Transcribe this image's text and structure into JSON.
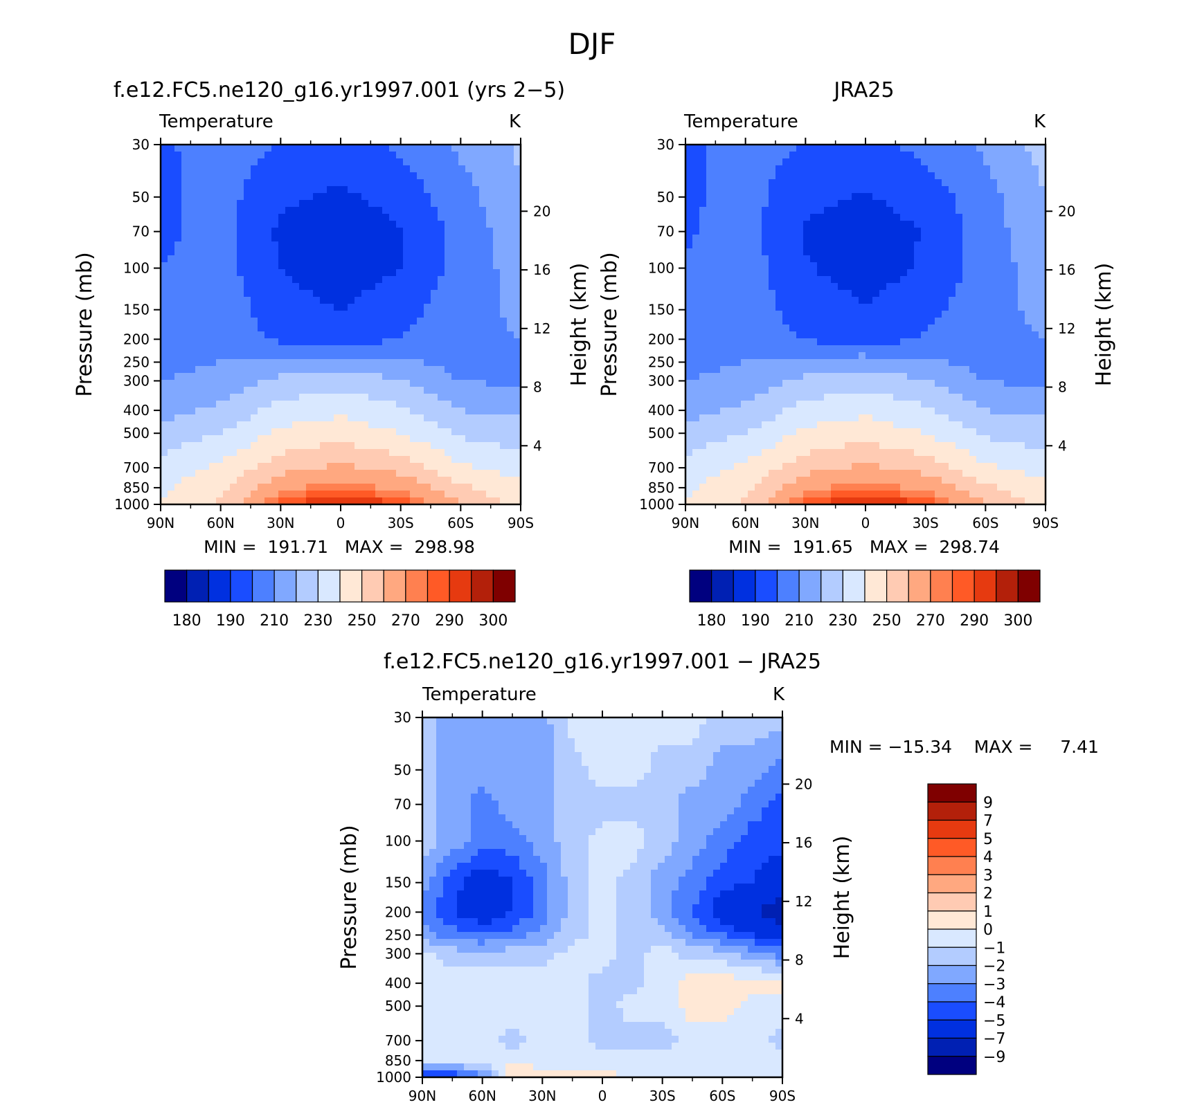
{
  "figure": {
    "title": "DJF"
  },
  "palettes": {
    "abs": [
      "#00007f",
      "#0020b3",
      "#0030e0",
      "#1a4dff",
      "#4d80ff",
      "#80a8ff",
      "#b3ccff",
      "#d9e8ff",
      "#ffe8d6",
      "#ffcbb3",
      "#ffa880",
      "#ff8050",
      "#ff5a26",
      "#e63a10",
      "#b3200a",
      "#7f0000"
    ],
    "diff": [
      "#00007f",
      "#0020b3",
      "#0030e0",
      "#1a4dff",
      "#4d80ff",
      "#80a8ff",
      "#b3ccff",
      "#d9e8ff",
      "#ffe8d6",
      "#ffcbb3",
      "#ffa880",
      "#ff8050",
      "#ff5a26",
      "#e63a10",
      "#b3200a",
      "#7f0000"
    ]
  },
  "chart_data": [
    {
      "type": "heatmap",
      "title": "f.e12.FC5.ne120_g16.yr1997.001 (yrs 2−5)",
      "subtitle": "Temperature",
      "units": "K",
      "xlabel": "",
      "ylabel": "Pressure (mb)",
      "y2label": "Height (km)",
      "x_ticks": [
        "90N",
        "60N",
        "30N",
        "0",
        "30S",
        "60S",
        "90S"
      ],
      "y_ticks": [
        "30",
        "50",
        "70",
        "100",
        "150",
        "200",
        "250",
        "300",
        "400",
        "500",
        "700",
        "850",
        "1000"
      ],
      "y2_ticks": [
        "20",
        "16",
        "12",
        "8",
        "4"
      ],
      "min_label": "MIN =  191.71   MAX =  298.98",
      "min": 191.71,
      "max": 298.98,
      "levels": [
        "180",
        "190",
        "210",
        "230",
        "250",
        "270",
        "290",
        "300"
      ],
      "field": {
        "kind": "abs",
        "x": [
          -90,
          -60,
          -30,
          0,
          30,
          60,
          90
        ],
        "p": [
          30,
          50,
          70,
          100,
          150,
          200,
          250,
          300,
          400,
          500,
          700,
          850,
          1000
        ],
        "values": [
          [
            208,
            215,
            210,
            206,
            212,
            222,
            232
          ],
          [
            208,
            214,
            202,
            198,
            204,
            216,
            228
          ],
          [
            208,
            214,
            198,
            192,
            200,
            214,
            226
          ],
          [
            210,
            214,
            200,
            194,
            200,
            214,
            224
          ],
          [
            212,
            216,
            204,
            200,
            206,
            216,
            222
          ],
          [
            214,
            217,
            208,
            204,
            210,
            217,
            220
          ],
          [
            217,
            220,
            224,
            226,
            222,
            216,
            216
          ],
          [
            220,
            224,
            232,
            236,
            230,
            220,
            218
          ],
          [
            226,
            232,
            244,
            248,
            242,
            230,
            228
          ],
          [
            234,
            240,
            252,
            256,
            250,
            238,
            234
          ],
          [
            244,
            252,
            266,
            272,
            266,
            252,
            246
          ],
          [
            248,
            258,
            278,
            284,
            278,
            262,
            252
          ],
          [
            250,
            262,
            288,
            298,
            290,
            270,
            256
          ]
        ]
      }
    },
    {
      "type": "heatmap",
      "title": "JRA25",
      "subtitle": "Temperature",
      "units": "K",
      "xlabel": "",
      "ylabel": "Pressure (mb)",
      "y2label": "Height (km)",
      "x_ticks": [
        "90N",
        "60N",
        "30N",
        "0",
        "30S",
        "60S",
        "90S"
      ],
      "y_ticks": [
        "30",
        "50",
        "70",
        "100",
        "150",
        "200",
        "250",
        "300",
        "400",
        "500",
        "700",
        "850",
        "1000"
      ],
      "y2_ticks": [
        "20",
        "16",
        "12",
        "8",
        "4"
      ],
      "min_label": "MIN =  191.65   MAX =  298.74",
      "min": 191.65,
      "max": 298.74,
      "levels": [
        "180",
        "190",
        "210",
        "230",
        "250",
        "270",
        "290",
        "300"
      ],
      "field": {
        "kind": "abs",
        "x": [
          -90,
          -60,
          -30,
          0,
          30,
          60,
          90
        ],
        "p": [
          30,
          50,
          70,
          100,
          150,
          200,
          250,
          300,
          400,
          500,
          700,
          850,
          1000
        ],
        "values": [
          [
            208,
            214,
            210,
            207,
            213,
            222,
            234
          ],
          [
            208,
            214,
            203,
            199,
            205,
            216,
            230
          ],
          [
            209,
            214,
            199,
            193,
            201,
            215,
            228
          ],
          [
            211,
            215,
            201,
            195,
            201,
            215,
            225
          ],
          [
            213,
            216,
            205,
            201,
            207,
            217,
            222
          ],
          [
            215,
            217,
            209,
            205,
            211,
            217,
            220
          ],
          [
            217,
            220,
            224,
            226,
            222,
            216,
            214
          ],
          [
            220,
            224,
            232,
            236,
            230,
            220,
            217
          ],
          [
            226,
            232,
            244,
            248,
            242,
            230,
            228
          ],
          [
            234,
            240,
            252,
            256,
            250,
            238,
            234
          ],
          [
            244,
            252,
            266,
            272,
            266,
            252,
            246
          ],
          [
            248,
            258,
            278,
            284,
            278,
            262,
            252
          ],
          [
            250,
            262,
            288,
            298,
            290,
            270,
            256
          ]
        ]
      }
    },
    {
      "type": "heatmap",
      "title": "f.e12.FC5.ne120_g16.yr1997.001 − JRA25",
      "subtitle": "Temperature",
      "units": "K",
      "xlabel": "",
      "ylabel": "Pressure (mb)",
      "y2label": "Height (km)",
      "x_ticks": [
        "90N",
        "60N",
        "30N",
        "0",
        "30S",
        "60S",
        "90S"
      ],
      "y_ticks": [
        "30",
        "50",
        "70",
        "100",
        "150",
        "200",
        "250",
        "300",
        "400",
        "500",
        "700",
        "850",
        "1000"
      ],
      "y2_ticks": [
        "20",
        "16",
        "12",
        "8",
        "4"
      ],
      "min_label": "MIN = −15.34    MAX =     7.41",
      "min": -15.34,
      "max": 7.41,
      "levels": [
        "9",
        "7",
        "5",
        "4",
        "3",
        "2",
        "1",
        "0",
        "−1",
        "−2",
        "−3",
        "−4",
        "−5",
        "−7",
        "−9"
      ],
      "field": {
        "kind": "diff",
        "x": [
          -90,
          -75,
          -60,
          -45,
          -30,
          -15,
          0,
          15,
          30,
          45,
          60,
          75,
          90
        ],
        "p": [
          30,
          50,
          70,
          100,
          150,
          200,
          250,
          300,
          400,
          500,
          700,
          850,
          1000
        ],
        "values": [
          [
            -1.5,
            -2.5,
            -2.5,
            -2.5,
            -2.5,
            -0.5,
            -0.5,
            -0.5,
            -0.5,
            -0.5,
            -1.5,
            -1.5,
            -1.5
          ],
          [
            -1.5,
            -2.5,
            -2.5,
            -2.5,
            -2.5,
            -1.5,
            -0.5,
            -0.5,
            -1.5,
            -1.5,
            -2.5,
            -2.5,
            -3.5
          ],
          [
            -1.5,
            -2.5,
            -3.5,
            -2.5,
            -2.5,
            -1.5,
            -1.5,
            -1.5,
            -1.5,
            -2.5,
            -2.5,
            -3.5,
            -4.5
          ],
          [
            -1.5,
            -2.5,
            -3.5,
            -3.5,
            -2.5,
            -1.5,
            -0.5,
            -0.5,
            -1.5,
            -2.5,
            -3.5,
            -4.5,
            -4.5
          ],
          [
            -2.5,
            -4.5,
            -6.0,
            -5.0,
            -3.5,
            -1.5,
            -0.5,
            -1.5,
            -2.5,
            -3.5,
            -4.5,
            -5.0,
            -6.0
          ],
          [
            -3.5,
            -5.0,
            -6.0,
            -5.0,
            -3.5,
            -1.5,
            -0.5,
            -1.5,
            -2.5,
            -4.0,
            -6.0,
            -7.0,
            -8.0
          ],
          [
            -2.5,
            -3.5,
            -4.0,
            -3.5,
            -2.5,
            -1.5,
            -0.5,
            -1.5,
            -1.5,
            -3.0,
            -4.0,
            -5.0,
            -6.0
          ],
          [
            -0.5,
            -1.5,
            -1.5,
            -1.5,
            -1.5,
            -0.5,
            -0.5,
            -1.5,
            -0.5,
            -1.5,
            -1.5,
            -2.5,
            -3.5
          ],
          [
            -0.5,
            -0.5,
            -0.5,
            -0.5,
            -0.5,
            -0.5,
            -1.5,
            -1.5,
            -0.5,
            0.5,
            0.5,
            0.5,
            0.5
          ],
          [
            -0.5,
            -0.5,
            -0.5,
            -0.5,
            -0.5,
            -0.5,
            -1.5,
            -0.5,
            -0.5,
            0.5,
            0.5,
            -0.5,
            -0.5
          ],
          [
            -0.5,
            -0.5,
            -0.5,
            -1.5,
            -0.5,
            -0.5,
            -1.5,
            -1.5,
            -1.5,
            -0.5,
            -0.5,
            -0.5,
            -1.5
          ],
          [
            -0.5,
            -0.5,
            -0.5,
            -0.5,
            -0.5,
            -0.5,
            -0.5,
            -0.5,
            -0.5,
            -0.5,
            -0.5,
            -0.5,
            -0.5
          ],
          [
            -6.0,
            -5.0,
            -3.5,
            1.5,
            0.5,
            0.5,
            0.5,
            -0.5,
            -0.5,
            -0.5,
            -0.5,
            -0.5,
            -0.5
          ]
        ]
      }
    }
  ]
}
